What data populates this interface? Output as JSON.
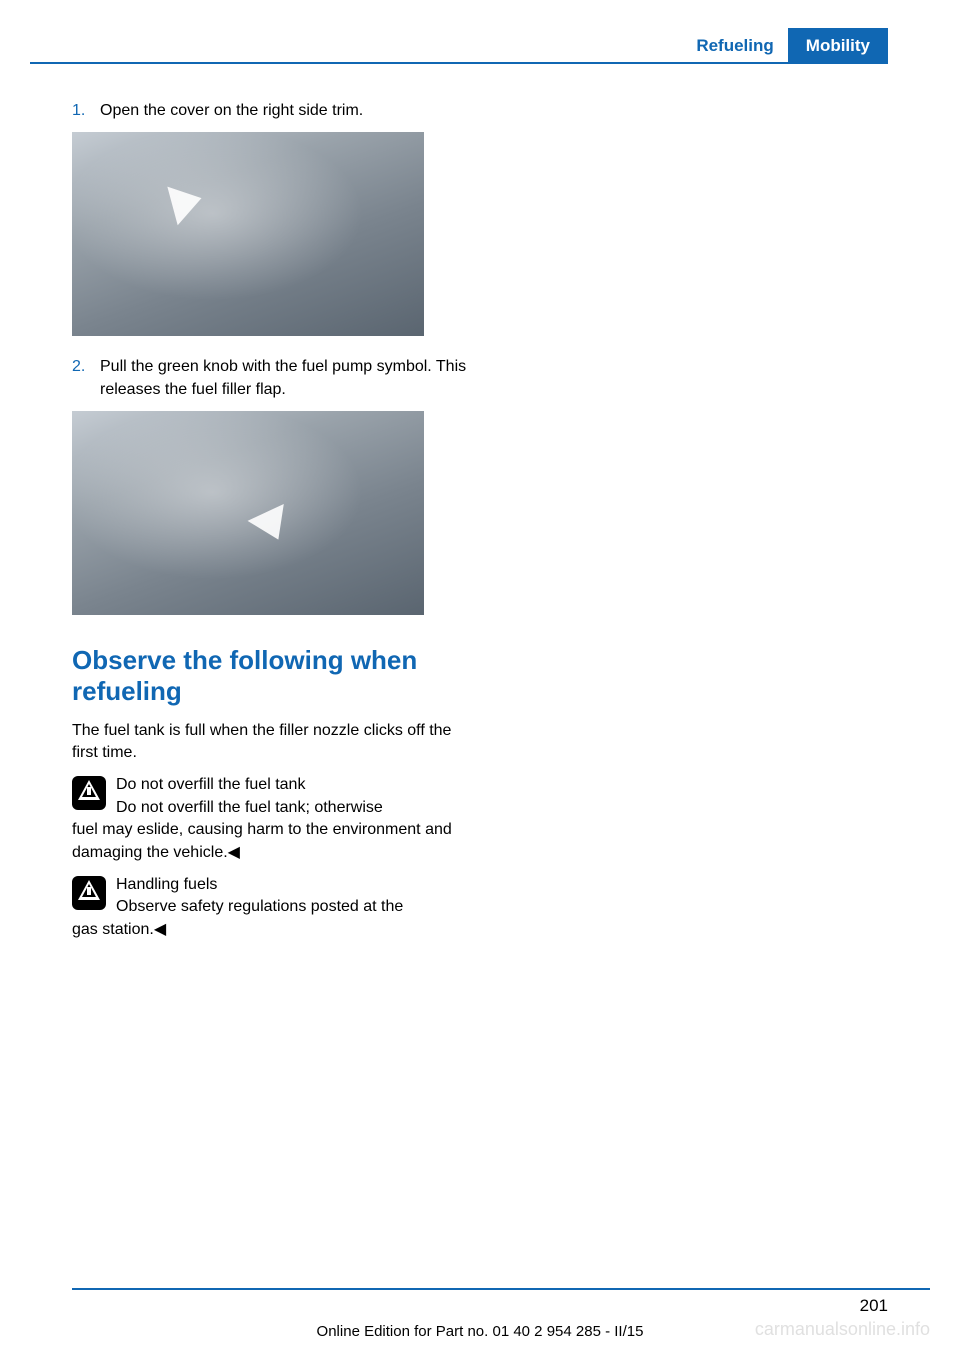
{
  "header": {
    "section": "Refueling",
    "chapter": "Mobility"
  },
  "steps": [
    {
      "num": "1.",
      "text": "Open the cover on the right side trim."
    },
    {
      "num": "2.",
      "text": "Pull the green knob with the fuel pump symbol. This releases the fuel filler flap."
    }
  ],
  "section_title": "Observe the following when refueling",
  "intro_text": "The fuel tank is full when the filler nozzle clicks off the first time.",
  "warnings": [
    {
      "title": "Do not overfill the fuel tank",
      "body": "Do not overfill the fuel tank; otherwise",
      "continuation": "fuel may eslide, causing harm to the environ­ment and damaging the vehicle.◀"
    },
    {
      "title": "Handling fuels",
      "body": "Observe safety regulations posted at the",
      "continuation": "gas station.◀"
    }
  ],
  "page_number": "201",
  "footer": "Online Edition for Part no. 01 40 2 954 285 - II/15",
  "watermark": "carmanualsonline.info",
  "colors": {
    "primary_blue": "#1067b3",
    "text": "#000000",
    "background": "#ffffff"
  }
}
